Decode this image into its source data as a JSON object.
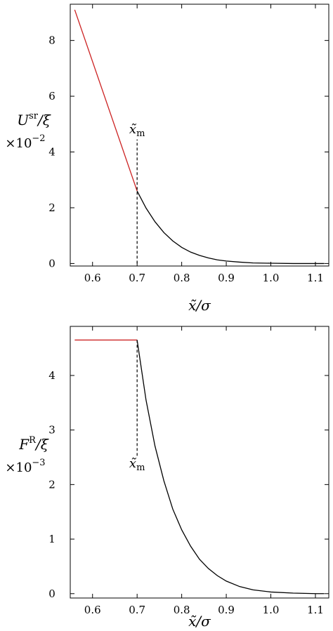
{
  "colors": {
    "linear_segment": "#cc2222",
    "curve": "#000000",
    "axis": "#000000"
  },
  "chart_data": [
    {
      "type": "line",
      "xlabel": "x̃/σ",
      "ylabel_main": "U",
      "ylabel_sup": "sr",
      "ylabel_tail": "/ξ",
      "yscale": "×10",
      "yscale_exp": "−2",
      "xlim": [
        0.55,
        1.13
      ],
      "ylim": [
        -0.09,
        9.3
      ],
      "xticks": [
        0.6,
        0.7,
        0.8,
        0.9,
        1.0,
        1.1
      ],
      "xtick_labels": [
        "0.6",
        "0.7",
        "0.8",
        "0.9",
        "1.0",
        "1.1"
      ],
      "yticks": [
        0,
        2,
        4,
        6,
        8
      ],
      "ytick_labels": [
        "0",
        "2",
        "4",
        "6",
        "8"
      ],
      "annotation": {
        "text": "x̃",
        "sub": "m",
        "x": 0.7
      },
      "marker_line": {
        "x": 0.7,
        "y_from": 0.0,
        "y_to": 4.45
      },
      "series": [
        {
          "color": "#cc2222",
          "x": [
            0.56,
            0.7
          ],
          "y": [
            9.1,
            2.6
          ]
        },
        {
          "color": "#000000",
          "x": [
            0.7,
            0.72,
            0.74,
            0.76,
            0.78,
            0.8,
            0.82,
            0.84,
            0.86,
            0.88,
            0.9,
            0.93,
            0.96,
            1.0,
            1.05,
            1.1,
            1.12
          ],
          "y": [
            2.6,
            1.99,
            1.5,
            1.11,
            0.81,
            0.58,
            0.41,
            0.29,
            0.2,
            0.13,
            0.09,
            0.05,
            0.02,
            0.01,
            0.0,
            0.0,
            0.0
          ]
        }
      ]
    },
    {
      "type": "line",
      "xlabel": "x̃/σ",
      "ylabel_main": "F",
      "ylabel_sup": "R",
      "ylabel_tail": "/ξ",
      "yscale": "×10",
      "yscale_exp": "−3",
      "xlim": [
        0.55,
        1.13
      ],
      "ylim": [
        -0.08,
        4.9
      ],
      "xticks": [
        0.6,
        0.7,
        0.8,
        0.9,
        1.0,
        1.1
      ],
      "xtick_labels": [
        "0.6",
        "0.7",
        "0.8",
        "0.9",
        "1.0",
        "1.1"
      ],
      "yticks": [
        0,
        1,
        2,
        3,
        4
      ],
      "ytick_labels": [
        "0",
        "1",
        "2",
        "3",
        "4"
      ],
      "annotation": {
        "text": "x̃",
        "sub": "m",
        "x": 0.7
      },
      "marker_line": {
        "x": 0.7,
        "y_from": 4.65,
        "y_to": 2.5
      },
      "series": [
        {
          "color": "#cc2222",
          "x": [
            0.56,
            0.7
          ],
          "y": [
            4.65,
            4.65
          ]
        },
        {
          "color": "#000000",
          "x": [
            0.7,
            0.72,
            0.74,
            0.76,
            0.78,
            0.8,
            0.82,
            0.84,
            0.86,
            0.88,
            0.9,
            0.93,
            0.96,
            1.0,
            1.05,
            1.1,
            1.12
          ],
          "y": [
            4.65,
            3.55,
            2.71,
            2.07,
            1.55,
            1.17,
            0.87,
            0.63,
            0.46,
            0.33,
            0.23,
            0.13,
            0.07,
            0.03,
            0.01,
            0.0,
            0.0
          ]
        }
      ]
    }
  ]
}
